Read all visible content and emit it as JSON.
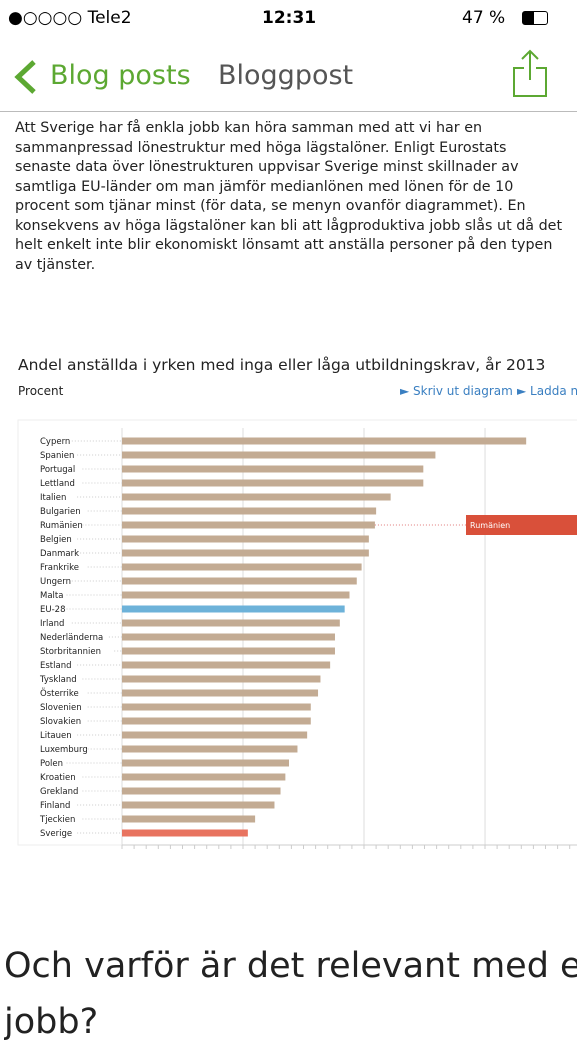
{
  "status_bar": {
    "carrier": "●○○○○ Tele2",
    "time": "12:31",
    "battery": "47 %"
  },
  "nav": {
    "back": "Blog posts",
    "title": "Bloggpost"
  },
  "body": {
    "lines": [
      "Att Sverige har få enkla jobb kan höra samman med att vi har en",
      "sammanpressad lönestruktur med höga lägstalöner. Enligt Eurostats",
      "senaste data över lönestrukturen uppvisar Sverige minst skillnader av",
      "samtliga EU-länder om man jämför medianlönen med lönen för de 10",
      "procent som tjänar minst (för data, se menyn ovanför diagrammet). En",
      "konsekvens av höga lägstalöner kan bli att lågproduktiva jobb slås ut då det",
      "helt enkelt inte blir ekonomiskt lönsamt att anställa personer på den typen",
      "av tjänster."
    ]
  },
  "chart_header": {
    "links": [
      "► Skriv ut diagram",
      "► Ladda ner"
    ]
  },
  "chart_data": {
    "type": "barh",
    "title": "Andel anställda i yrken med inga eller låga utbildningskrav, år 2013",
    "y_label": "Procent",
    "categories": [
      "Cypern",
      "Spanien",
      "Portugal",
      "Lettland",
      "Italien",
      "Bulgarien",
      "Rumänien",
      "Belgien",
      "Danmark",
      "Frankrike",
      "Ungern",
      "Malta",
      "EU-28",
      "Irland",
      "Nederländerna",
      "Storbritannien",
      "Estland",
      "Tyskland",
      "Österrike",
      "Slovenien",
      "Slovakien",
      "Litauen",
      "Luxemburg",
      "Polen",
      "Kroatien",
      "Grekland",
      "Finland",
      "Tjeckien",
      "Sverige"
    ],
    "values": [
      33.4,
      25.9,
      24.9,
      24.9,
      22.2,
      21.0,
      20.9,
      20.4,
      20.4,
      19.8,
      19.4,
      18.8,
      18.4,
      18.0,
      17.6,
      17.6,
      17.2,
      16.4,
      16.2,
      15.6,
      15.6,
      15.3,
      14.5,
      13.8,
      13.5,
      13.1,
      12.6,
      11.0,
      10.4
    ],
    "colors": [
      "#c3ab93",
      "#c3ab93",
      "#c3ab93",
      "#c3ab93",
      "#c3ab93",
      "#c3ab93",
      "#c3ab93",
      "#c3ab93",
      "#c3ab93",
      "#c3ab93",
      "#c3ab93",
      "#c3ab93",
      "#6db2d9",
      "#c3ab93",
      "#c3ab93",
      "#c3ab93",
      "#c3ab93",
      "#c3ab93",
      "#c3ab93",
      "#c3ab93",
      "#c3ab93",
      "#c3ab93",
      "#c3ab93",
      "#c3ab93",
      "#c3ab93",
      "#c3ab93",
      "#c3ab93",
      "#c3ab93",
      "#e8735f"
    ],
    "xlim": [
      0,
      37.6
    ],
    "xticks": [
      0,
      10,
      20,
      30
    ],
    "grid": true,
    "tooltip": "Rumänien"
  },
  "heading": {
    "lines": [
      "Och varför är det relevant med enkla",
      "jobb?"
    ]
  }
}
